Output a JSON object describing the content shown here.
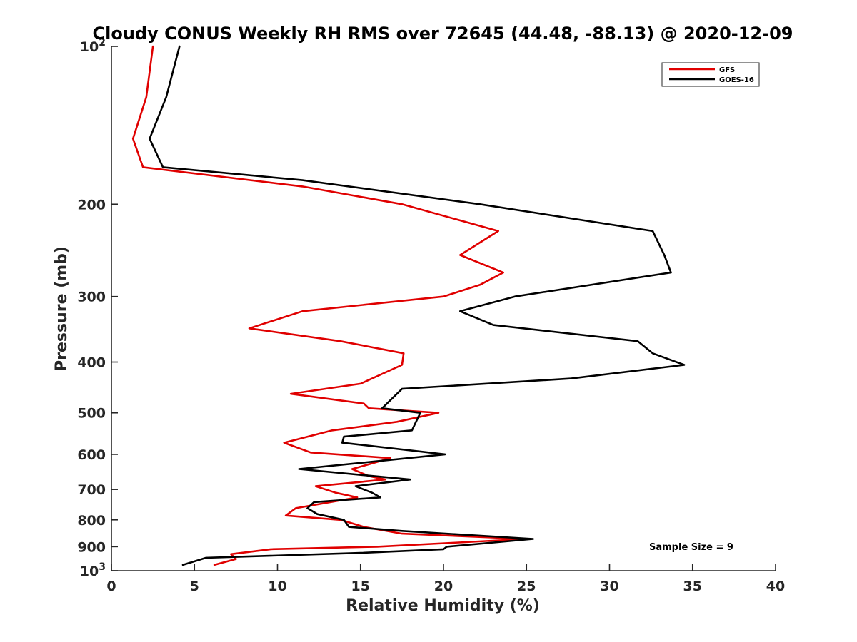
{
  "chart_data": {
    "type": "line",
    "title": "Cloudy CONUS Weekly RH RMS over 72645 (44.48, -88.13) @ 2020-12-09",
    "xlabel": "Relative Humidity (%)",
    "ylabel": "Pressure (mb)",
    "xlim": [
      0,
      40
    ],
    "ylim": [
      100,
      1000
    ],
    "y_scale": "log",
    "y_reversed": true,
    "grid": false,
    "legend_position": "top-right",
    "x_ticks": [
      "0",
      "5",
      "10",
      "15",
      "20",
      "25",
      "30",
      "35",
      "40"
    ],
    "y_ticks": [
      {
        "value": 100,
        "label": "10",
        "sup": "2"
      },
      {
        "value": 200,
        "label": "200",
        "sup": ""
      },
      {
        "value": 300,
        "label": "300",
        "sup": ""
      },
      {
        "value": 400,
        "label": "400",
        "sup": ""
      },
      {
        "value": 500,
        "label": "500",
        "sup": ""
      },
      {
        "value": 600,
        "label": "600",
        "sup": ""
      },
      {
        "value": 700,
        "label": "700",
        "sup": ""
      },
      {
        "value": 800,
        "label": "800",
        "sup": ""
      },
      {
        "value": 900,
        "label": "900",
        "sup": ""
      },
      {
        "value": 1000,
        "label": "10",
        "sup": "3"
      }
    ],
    "annotation": "Sample Size = 9",
    "series": [
      {
        "name": "GFS",
        "color": "#e00000",
        "points": [
          [
            2.5,
            100
          ],
          [
            2.1,
            125
          ],
          [
            1.3,
            150
          ],
          [
            1.9,
            170
          ],
          [
            11.5,
            185
          ],
          [
            17.5,
            200
          ],
          [
            23.3,
            225
          ],
          [
            21.0,
            250
          ],
          [
            23.6,
            270
          ],
          [
            22.2,
            285
          ],
          [
            20.0,
            300
          ],
          [
            11.5,
            320
          ],
          [
            8.3,
            345
          ],
          [
            13.8,
            365
          ],
          [
            17.6,
            385
          ],
          [
            17.5,
            405
          ],
          [
            15.0,
            440
          ],
          [
            10.8,
            460
          ],
          [
            15.2,
            480
          ],
          [
            15.5,
            490
          ],
          [
            19.7,
            500
          ],
          [
            17.2,
            520
          ],
          [
            13.3,
            540
          ],
          [
            10.4,
            570
          ],
          [
            12.0,
            595
          ],
          [
            16.8,
            610
          ],
          [
            14.5,
            640
          ],
          [
            15.5,
            660
          ],
          [
            16.5,
            670
          ],
          [
            12.3,
            690
          ],
          [
            13.5,
            710
          ],
          [
            14.8,
            725
          ],
          [
            13.2,
            740
          ],
          [
            11.1,
            760
          ],
          [
            10.5,
            785
          ],
          [
            13.8,
            800
          ],
          [
            15.2,
            825
          ],
          [
            17.5,
            850
          ],
          [
            25.0,
            870
          ],
          [
            20.5,
            885
          ],
          [
            16.0,
            900
          ],
          [
            9.6,
            910
          ],
          [
            7.2,
            930
          ],
          [
            7.5,
            950
          ],
          [
            6.2,
            975
          ]
        ]
      },
      {
        "name": "GOES-16",
        "color": "#000000",
        "points": [
          [
            4.1,
            100
          ],
          [
            3.3,
            125
          ],
          [
            2.3,
            150
          ],
          [
            3.1,
            170
          ],
          [
            11.5,
            180
          ],
          [
            22.2,
            200
          ],
          [
            32.6,
            225
          ],
          [
            33.3,
            250
          ],
          [
            33.7,
            270
          ],
          [
            24.3,
            300
          ],
          [
            21.0,
            320
          ],
          [
            23.0,
            340
          ],
          [
            31.7,
            365
          ],
          [
            32.6,
            385
          ],
          [
            34.5,
            405
          ],
          [
            27.7,
            430
          ],
          [
            17.5,
            450
          ],
          [
            16.3,
            490
          ],
          [
            18.6,
            500
          ],
          [
            18.1,
            540
          ],
          [
            14.0,
            555
          ],
          [
            13.9,
            570
          ],
          [
            20.1,
            600
          ],
          [
            11.3,
            640
          ],
          [
            18.0,
            670
          ],
          [
            14.7,
            690
          ],
          [
            15.7,
            710
          ],
          [
            16.2,
            725
          ],
          [
            12.2,
            740
          ],
          [
            11.8,
            760
          ],
          [
            12.4,
            780
          ],
          [
            14.0,
            800
          ],
          [
            14.3,
            825
          ],
          [
            17.5,
            840
          ],
          [
            25.4,
            870
          ],
          [
            20.2,
            900
          ],
          [
            20.0,
            910
          ],
          [
            15.0,
            925
          ],
          [
            5.7,
            945
          ],
          [
            4.3,
            975
          ]
        ]
      }
    ]
  }
}
